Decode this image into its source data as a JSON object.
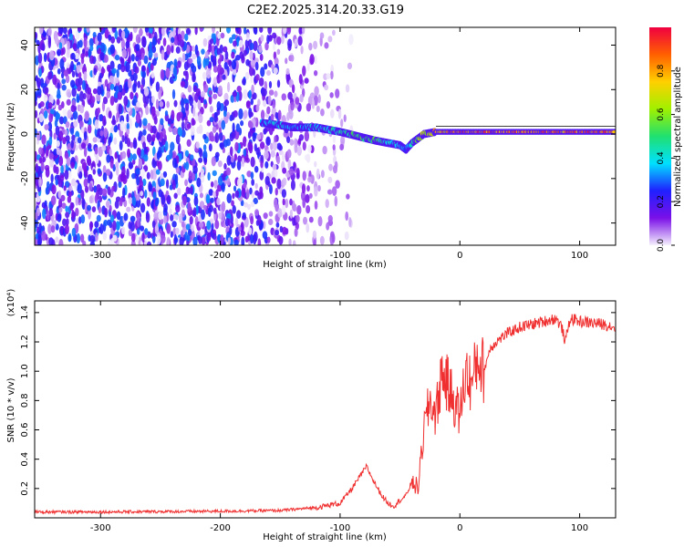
{
  "title": "C2E2.2025.314.20.33.G19",
  "chart_data": [
    {
      "type": "heatmap",
      "xlabel": "Height of straight line (km)",
      "ylabel": "Frequency (Hz)",
      "xlim": [
        -355,
        130
      ],
      "ylim": [
        -50,
        48
      ],
      "xticks": [
        -300,
        -200,
        -100,
        0,
        100
      ],
      "yticks": [
        -40,
        -20,
        0,
        20,
        40
      ],
      "colorbar": {
        "label": "Normalized spectral amplitude",
        "range": [
          0,
          1
        ],
        "ticks": [
          0.0,
          0.2,
          0.4,
          0.6,
          0.8
        ],
        "colors": [
          "#f4f0fc",
          "#7a10e8",
          "#2020ff",
          "#00e0ff",
          "#20e070",
          "#a0f000",
          "#ffd000",
          "#ff6000",
          "#f00040"
        ]
      },
      "noise_region": {
        "x_from": -355,
        "x_to": -120,
        "freq_from": -50,
        "freq_to": 48
      },
      "signal_trace": {
        "x": [
          -165,
          -150,
          -140,
          -120,
          -100,
          -85,
          -70,
          -60,
          -50,
          -45,
          -40,
          -35,
          -30,
          -20,
          0,
          20,
          50,
          80,
          90,
          100,
          130
        ],
        "freq": [
          5,
          4,
          3,
          3,
          1,
          -1,
          -3,
          -4,
          -5,
          -7,
          -4,
          -2,
          0,
          1,
          1,
          1,
          1,
          1,
          1,
          1,
          1
        ],
        "amplitude": [
          0.35,
          0.4,
          0.35,
          0.4,
          0.45,
          0.55,
          0.5,
          0.45,
          0.4,
          0.3,
          0.45,
          0.55,
          0.7,
          0.8,
          0.9,
          0.9,
          0.92,
          0.9,
          0.85,
          0.9,
          0.9
        ]
      }
    },
    {
      "type": "line",
      "xlabel": "Height of straight line (km)",
      "ylabel": "SNR (10 * v/v)",
      "y_multiplier": "(x10⁴)",
      "xlim": [
        -355,
        130
      ],
      "ylim": [
        0,
        1.48
      ],
      "xticks": [
        -300,
        -200,
        -100,
        0,
        100
      ],
      "yticks": [
        0.2,
        0.4,
        0.6,
        0.8,
        1.0,
        1.2,
        1.4
      ],
      "color": "#f03030",
      "series": [
        {
          "x": [
            -355,
            -300,
            -200,
            -150,
            -120,
            -100,
            -90,
            -82,
            -78,
            -72,
            -65,
            -60,
            -55,
            -50,
            -45,
            -40,
            -35,
            -30,
            -25,
            -20,
            -15,
            -10,
            -5,
            0,
            5,
            10,
            15,
            20,
            25,
            30,
            40,
            50,
            60,
            70,
            80,
            85,
            88,
            92,
            100,
            110,
            120,
            130
          ],
          "y": [
            0.04,
            0.04,
            0.045,
            0.05,
            0.07,
            0.1,
            0.2,
            0.3,
            0.35,
            0.25,
            0.15,
            0.1,
            0.08,
            0.12,
            0.15,
            0.25,
            0.2,
            0.6,
            0.8,
            0.7,
            1.0,
            0.9,
            0.8,
            0.7,
            1.0,
            0.9,
            1.1,
            1.0,
            1.15,
            1.2,
            1.26,
            1.3,
            1.32,
            1.34,
            1.36,
            1.3,
            1.2,
            1.36,
            1.34,
            1.33,
            1.32,
            1.3
          ]
        }
      ]
    }
  ]
}
